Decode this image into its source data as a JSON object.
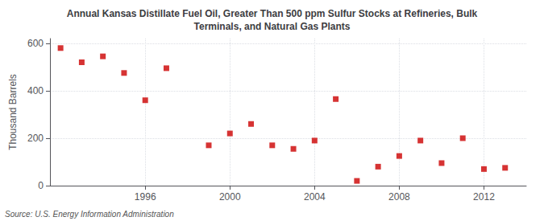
{
  "chart_data": {
    "type": "scatter",
    "title": "Annual Kansas Distillate Fuel Oil, Greater Than 500 ppm Sulfur Stocks at Refineries, Bulk\nTerminals, and Natural Gas Plants",
    "ylabel": "Thousand Barrels",
    "annotation": "Source: U.S. Energy Information Administration",
    "x": [
      1992,
      1993,
      1994,
      1995,
      1996,
      1997,
      1999,
      2000,
      2001,
      2002,
      2003,
      2004,
      2005,
      2006,
      2007,
      2008,
      2009,
      2010,
      2011,
      2012,
      2013
    ],
    "values": [
      580,
      520,
      545,
      475,
      360,
      495,
      170,
      220,
      260,
      170,
      155,
      190,
      365,
      20,
      80,
      125,
      190,
      95,
      200,
      70,
      75
    ],
    "color": "#cc0000",
    "marker": "square",
    "xlim": [
      1991.5,
      2014
    ],
    "xticks": [
      1996,
      2000,
      2004,
      2008,
      2012
    ],
    "ylim": [
      0,
      620
    ],
    "yticks": [
      0,
      200,
      400,
      600
    ],
    "grid": true
  }
}
